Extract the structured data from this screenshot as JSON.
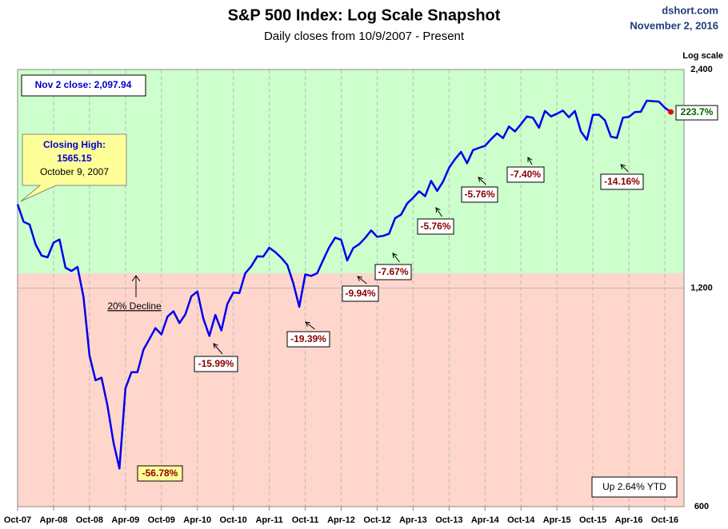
{
  "chart_data": {
    "type": "line",
    "title": "S&P 500 Index: Log Scale Snapshot",
    "subtitle": "Daily closes from 10/9/2007 - Present",
    "source": "dshort.com",
    "date": "November 2, 2016",
    "scale_label": "Log scale",
    "log_scale": true,
    "color": "#0000ee",
    "close_note": "Nov 2 close: 2,097.94",
    "high_note": [
      "Closing High:",
      "1565.15",
      "October 9, 2007"
    ],
    "decline_note": "20% Decline",
    "ytd_note": "Up 2.64% YTD",
    "end_label": "223.7%",
    "x": [
      "2007-10",
      "2007-11",
      "2007-12",
      "2008-01",
      "2008-02",
      "2008-03",
      "2008-04",
      "2008-05",
      "2008-06",
      "2008-07",
      "2008-08",
      "2008-09",
      "2008-10",
      "2008-11",
      "2008-12",
      "2009-01",
      "2009-02",
      "2009-03",
      "2009-04",
      "2009-05",
      "2009-06",
      "2009-07",
      "2009-08",
      "2009-09",
      "2009-10",
      "2009-11",
      "2009-12",
      "2010-01",
      "2010-02",
      "2010-03",
      "2010-04",
      "2010-05",
      "2010-06",
      "2010-07",
      "2010-08",
      "2010-09",
      "2010-10",
      "2010-11",
      "2010-12",
      "2011-01",
      "2011-02",
      "2011-03",
      "2011-04",
      "2011-05",
      "2011-06",
      "2011-07",
      "2011-08",
      "2011-09",
      "2011-10",
      "2011-11",
      "2011-12",
      "2012-01",
      "2012-02",
      "2012-03",
      "2012-04",
      "2012-05",
      "2012-06",
      "2012-07",
      "2012-08",
      "2012-09",
      "2012-10",
      "2012-11",
      "2012-12",
      "2013-01",
      "2013-02",
      "2013-03",
      "2013-04",
      "2013-05",
      "2013-06",
      "2013-07",
      "2013-08",
      "2013-09",
      "2013-10",
      "2013-11",
      "2013-12",
      "2014-01",
      "2014-02",
      "2014-03",
      "2014-04",
      "2014-05",
      "2014-06",
      "2014-07",
      "2014-08",
      "2014-09",
      "2014-10",
      "2014-11",
      "2014-12",
      "2015-01",
      "2015-02",
      "2015-03",
      "2015-04",
      "2015-05",
      "2015-06",
      "2015-07",
      "2015-08",
      "2015-09",
      "2015-10",
      "2015-11",
      "2015-12",
      "2016-01",
      "2016-02",
      "2016-03",
      "2016-04",
      "2016-05",
      "2016-06",
      "2016-07",
      "2016-08",
      "2016-09",
      "2016-10",
      "2016-11"
    ],
    "values": [
      1565,
      1481,
      1468,
      1378,
      1330,
      1323,
      1386,
      1400,
      1280,
      1267,
      1283,
      1166,
      969,
      896,
      903,
      826,
      735,
      677,
      873,
      919,
      919,
      987,
      1021,
      1057,
      1036,
      1096,
      1115,
      1074,
      1104,
      1169,
      1187,
      1089,
      1031,
      1102,
      1049,
      1141,
      1183,
      1181,
      1258,
      1286,
      1327,
      1326,
      1364,
      1345,
      1321,
      1292,
      1219,
      1131,
      1253,
      1247,
      1258,
      1312,
      1366,
      1408,
      1398,
      1310,
      1362,
      1379,
      1407,
      1441,
      1412,
      1416,
      1426,
      1498,
      1515,
      1569,
      1598,
      1631,
      1606,
      1686,
      1633,
      1682,
      1757,
      1806,
      1848,
      1783,
      1859,
      1872,
      1884,
      1924,
      1960,
      1931,
      2003,
      1972,
      2018,
      2068,
      2059,
      1995,
      2105,
      2068,
      2086,
      2107,
      2063,
      2104,
      1972,
      1920,
      2079,
      2080,
      2044,
      1940,
      1932,
      2060,
      2065,
      2097,
      2099,
      2174,
      2171,
      2168,
      2126,
      2098
    ],
    "xlim": [
      "2007-10",
      "2016-11"
    ],
    "xticks": [
      {
        "value": "2007-10",
        "label": "Oct-07"
      },
      {
        "value": "2008-04",
        "label": "Apr-08"
      },
      {
        "value": "2008-10",
        "label": "Oct-08"
      },
      {
        "value": "2009-04",
        "label": "Apr-09"
      },
      {
        "value": "2009-10",
        "label": "Oct-09"
      },
      {
        "value": "2010-04",
        "label": "Apr-10"
      },
      {
        "value": "2010-10",
        "label": "Oct-10"
      },
      {
        "value": "2011-04",
        "label": "Apr-11"
      },
      {
        "value": "2011-10",
        "label": "Oct-11"
      },
      {
        "value": "2012-04",
        "label": "Apr-12"
      },
      {
        "value": "2012-10",
        "label": "Oct-12"
      },
      {
        "value": "2013-04",
        "label": "Apr-13"
      },
      {
        "value": "2013-10",
        "label": "Oct-13"
      },
      {
        "value": "2014-04",
        "label": "Apr-14"
      },
      {
        "value": "2014-10",
        "label": "Oct-14"
      },
      {
        "value": "2015-04",
        "label": "Apr-15"
      },
      {
        "value": "2015-10",
        "label": "Oct-15"
      },
      {
        "value": "2016-04",
        "label": "Apr-16"
      },
      {
        "value": "2016-10",
        "label": "Oct-16"
      }
    ],
    "ylim": [
      600,
      2400
    ],
    "yticks": [
      600,
      {
        "value": 1200,
        "label": "1,200"
      },
      {
        "value": 2400,
        "label": "2,400"
      }
    ],
    "annotations": [
      "-56.78%",
      "-15.99%",
      "-19.39%",
      "-9.94%",
      "-7.67%",
      "-5.76%",
      "-5.76%",
      "-7.40%",
      "-14.16%"
    ]
  }
}
